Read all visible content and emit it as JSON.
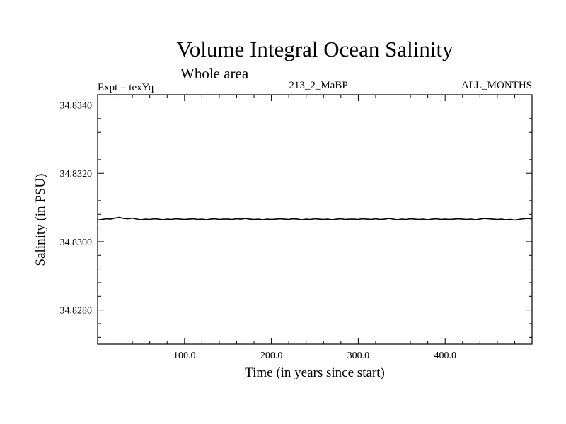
{
  "chart_data": {
    "type": "line",
    "title": "Volume Integral Ocean Salinity",
    "subtitle": "Whole area",
    "annotations": {
      "left": "Expt = texYq",
      "center": "213_2_MaBP",
      "right": "ALL_MONTHS"
    },
    "xlabel": "Time (in years since start)",
    "ylabel": "Salinity (in PSU)",
    "xlim": [
      0,
      500
    ],
    "ylim": [
      34.827,
      34.8343
    ],
    "x_ticks": [
      100,
      200,
      300,
      400
    ],
    "x_tick_labels": [
      "100.0",
      "200.0",
      "300.0",
      "400.0"
    ],
    "y_ticks": [
      34.828,
      34.83,
      34.832,
      34.834
    ],
    "y_tick_labels": [
      "34.8280",
      "34.8300",
      "34.8320",
      "34.8340"
    ],
    "grid": false,
    "series": [
      {
        "color": "#000000",
        "x": [
          0,
          5,
          10,
          15,
          20,
          25,
          30,
          35,
          40,
          45,
          50,
          55,
          60,
          65,
          70,
          75,
          80,
          85,
          90,
          95,
          100,
          105,
          110,
          115,
          120,
          125,
          130,
          135,
          140,
          145,
          150,
          155,
          160,
          165,
          170,
          175,
          180,
          185,
          190,
          195,
          200,
          205,
          210,
          215,
          220,
          225,
          230,
          235,
          240,
          245,
          250,
          255,
          260,
          265,
          270,
          275,
          280,
          285,
          290,
          295,
          300,
          305,
          310,
          315,
          320,
          325,
          330,
          335,
          340,
          345,
          350,
          355,
          360,
          365,
          370,
          375,
          380,
          385,
          390,
          395,
          400,
          405,
          410,
          415,
          420,
          425,
          430,
          435,
          440,
          445,
          450,
          455,
          460,
          465,
          470,
          475,
          480,
          485,
          490,
          495,
          500
        ],
        "values": [
          34.83063,
          34.83065,
          34.83067,
          34.83066,
          34.83069,
          34.83071,
          34.83068,
          34.83067,
          34.83069,
          34.83066,
          34.83064,
          34.83066,
          34.83065,
          34.83067,
          34.83066,
          34.83064,
          34.83066,
          34.83065,
          34.83067,
          34.83066,
          34.83065,
          34.83066,
          34.83067,
          34.83065,
          34.83066,
          34.83064,
          34.83066,
          34.83067,
          34.83065,
          34.83066,
          34.83066,
          34.83065,
          34.83067,
          34.83066,
          34.83068,
          34.83066,
          34.83065,
          34.83066,
          34.83064,
          34.83066,
          34.83065,
          34.83066,
          34.83067,
          34.83066,
          34.83065,
          34.83067,
          34.83066,
          34.83064,
          34.83066,
          34.83065,
          34.83067,
          34.83066,
          34.83065,
          34.83066,
          34.83064,
          34.83066,
          34.83067,
          34.83065,
          34.83066,
          34.83066,
          34.83065,
          34.83067,
          34.83066,
          34.83065,
          34.83067,
          34.83065,
          34.83066,
          34.83068,
          34.83066,
          34.83064,
          34.83066,
          34.83065,
          34.83067,
          34.83066,
          34.83065,
          34.83066,
          34.83064,
          34.83066,
          34.83067,
          34.83065,
          34.83066,
          34.83065,
          34.83066,
          34.83067,
          34.83066,
          34.83065,
          34.83066,
          34.83064,
          34.83066,
          34.83068,
          34.83067,
          34.83066,
          34.83065,
          34.83066,
          34.83064,
          34.83065,
          34.83063,
          34.83065,
          34.83067,
          34.83068,
          34.83067
        ]
      }
    ]
  }
}
